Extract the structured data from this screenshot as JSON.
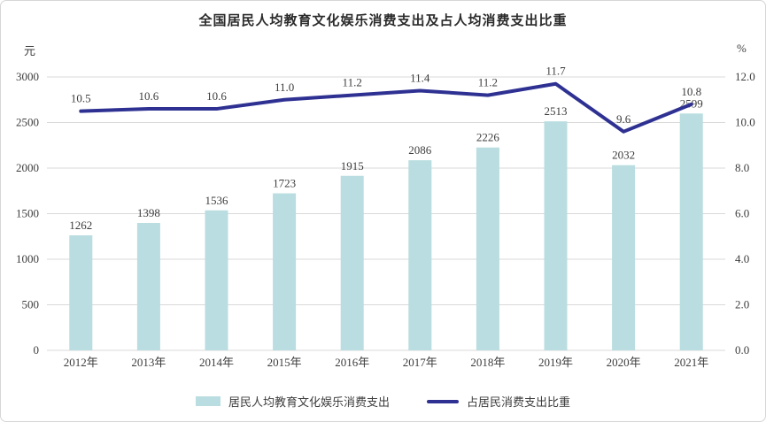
{
  "title": "全国居民人均教育文化娱乐消费支出及占人均消费支出比重",
  "axes": {
    "left_unit": "元",
    "right_unit": "%"
  },
  "legend": [
    {
      "label": "居民人均教育文化娱乐消费支出",
      "marker": "bar-swatch"
    },
    {
      "label": "占居民消费支出比重",
      "marker": "line-swatch"
    }
  ],
  "colors": {
    "bar": "#b9dde0",
    "line": "#2e3192",
    "grid": "#d9d9d9",
    "text": "#3d3d3d"
  },
  "chart_data": {
    "type": "bar",
    "subtype": "bar+line dual axis",
    "title": "全国居民人均教育文化娱乐消费支出及占人均消费支出比重",
    "categories": [
      "2012年",
      "2013年",
      "2014年",
      "2015年",
      "2016年",
      "2017年",
      "2018年",
      "2019年",
      "2020年",
      "2021年"
    ],
    "series": [
      {
        "name": "居民人均教育文化娱乐消费支出",
        "type": "bar",
        "axis": "left",
        "values": [
          1262,
          1398,
          1536,
          1723,
          1915,
          2086,
          2226,
          2513,
          2032,
          2599
        ]
      },
      {
        "name": "占居民消费支出比重",
        "type": "line",
        "axis": "right",
        "values": [
          10.5,
          10.6,
          10.6,
          11.0,
          11.2,
          11.4,
          11.2,
          11.7,
          9.6,
          10.8
        ]
      }
    ],
    "left_axis": {
      "label": "元",
      "range": [
        0,
        3000
      ],
      "ticks": [
        "0",
        "500",
        "1000",
        "1500",
        "2000",
        "2500",
        "3000"
      ]
    },
    "right_axis": {
      "label": "%",
      "range": [
        0,
        12
      ],
      "ticks": [
        "0.0",
        "2.0",
        "4.0",
        "6.0",
        "8.0",
        "10.0",
        "12.0"
      ]
    },
    "grid": true,
    "legend_position": "bottom"
  }
}
